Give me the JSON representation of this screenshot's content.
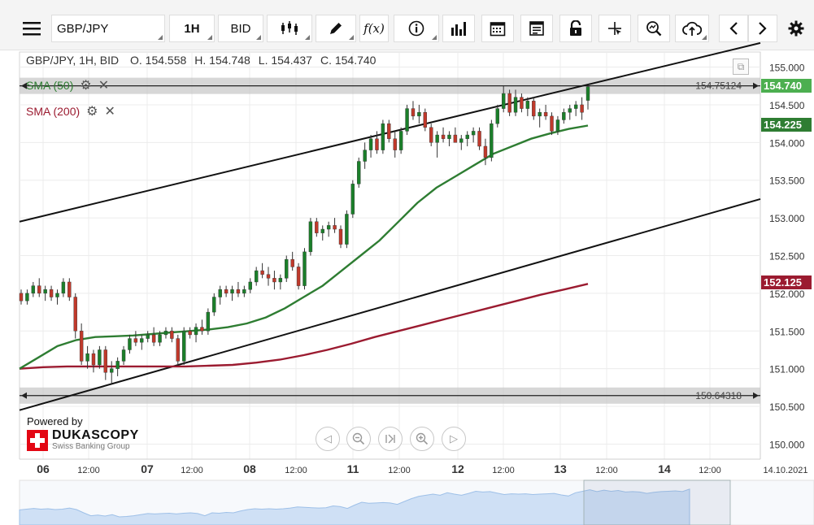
{
  "toolbar": {
    "menu_icon": "hamburger-icon",
    "symbol": "GBP/JPY",
    "timeframe": "1H",
    "side": "BID",
    "chart_type_icon": "candlestick-icon",
    "draw_icon": "pencil-icon",
    "indicator_label": "f(x)",
    "info_icon": "info-icon",
    "volume_icon": "bar-chart-icon",
    "calendar_icon": "calendar-icon",
    "template_icon": "template-icon",
    "lock_icon": "lock-icon",
    "crosshair_icon": "crosshair-icon",
    "zoom_icon": "zoom-icon",
    "cloud_icon": "cloud-upload-icon",
    "prev_icon": "chevron-left-icon",
    "next_icon": "chevron-right-icon",
    "settings_icon": "gear-icon"
  },
  "header": {
    "instrument": "GBP/JPY, 1H, BID",
    "open": "O. 154.558",
    "high": "H. 154.748",
    "low": "L. 154.437",
    "close": "C. 154.740"
  },
  "indicators": [
    {
      "label": "SMA (50)",
      "color": "#2e7d32"
    },
    {
      "label": "SMA (200)",
      "color": "#9b1b30"
    }
  ],
  "levels": {
    "upper_label": "154.75124",
    "lower_label": "150.64318"
  },
  "price_tags": {
    "last": "154.740",
    "sma50": "154.225",
    "sma200": "152.125"
  },
  "branding": {
    "powered": "Powered by",
    "name": "DUKASCOPY",
    "sub": "Swiss Banking Group"
  },
  "nav": [
    "chevron-left-icon",
    "zoom-out-icon",
    "reset-icon",
    "zoom-in-icon",
    "chevron-right-icon"
  ],
  "chart_data": {
    "type": "candlestick",
    "y_ticks": [
      "155.000",
      "154.500",
      "154.000",
      "153.500",
      "153.000",
      "152.500",
      "152.000",
      "151.500",
      "151.000",
      "150.500",
      "150.000"
    ],
    "ylim": [
      149.8,
      155.2
    ],
    "x_labels": [
      "06",
      "12:00",
      "07",
      "12:00",
      "08",
      "12:00",
      "11",
      "12:00",
      "12",
      "12:00",
      "13",
      "12:00",
      "14",
      "12:00",
      "14.10.2021"
    ],
    "x_label_days": [
      "06",
      "07",
      "08",
      "11",
      "12",
      "13",
      "14"
    ],
    "candles": [
      [
        152.0,
        152.05,
        151.85,
        151.9
      ],
      [
        151.9,
        152.05,
        151.85,
        152.0
      ],
      [
        152.0,
        152.15,
        151.95,
        152.1
      ],
      [
        152.1,
        152.2,
        151.95,
        152.0
      ],
      [
        152.0,
        152.1,
        151.9,
        152.05
      ],
      [
        152.05,
        152.1,
        151.9,
        151.95
      ],
      [
        151.95,
        152.05,
        151.85,
        152.0
      ],
      [
        152.0,
        152.2,
        151.95,
        152.15
      ],
      [
        152.15,
        152.2,
        151.9,
        151.95
      ],
      [
        151.95,
        152.0,
        151.4,
        151.5
      ],
      [
        151.5,
        151.6,
        151.05,
        151.1
      ],
      [
        151.1,
        151.3,
        151.0,
        151.2
      ],
      [
        151.2,
        151.25,
        150.95,
        151.05
      ],
      [
        151.05,
        151.3,
        151.0,
        151.25
      ],
      [
        151.25,
        151.3,
        150.85,
        150.95
      ],
      [
        150.95,
        151.1,
        150.8,
        151.0
      ],
      [
        151.0,
        151.15,
        150.9,
        151.1
      ],
      [
        151.1,
        151.3,
        151.05,
        151.25
      ],
      [
        151.25,
        151.45,
        151.2,
        151.4
      ],
      [
        151.4,
        151.5,
        151.3,
        151.35
      ],
      [
        151.35,
        151.45,
        151.25,
        151.4
      ],
      [
        151.4,
        151.5,
        151.35,
        151.45
      ],
      [
        151.45,
        151.55,
        151.3,
        151.35
      ],
      [
        151.35,
        151.5,
        151.3,
        151.45
      ],
      [
        151.45,
        151.55,
        151.4,
        151.5
      ],
      [
        151.5,
        151.55,
        151.35,
        151.4
      ],
      [
        151.4,
        151.45,
        151.05,
        151.1
      ],
      [
        151.1,
        151.55,
        151.05,
        151.5
      ],
      [
        151.5,
        151.55,
        151.4,
        151.45
      ],
      [
        151.45,
        151.6,
        151.35,
        151.55
      ],
      [
        151.55,
        151.65,
        151.45,
        151.5
      ],
      [
        151.5,
        151.8,
        151.45,
        151.75
      ],
      [
        151.75,
        152.0,
        151.7,
        151.95
      ],
      [
        151.95,
        152.1,
        151.85,
        152.05
      ],
      [
        152.05,
        152.1,
        151.95,
        152.0
      ],
      [
        152.0,
        152.1,
        151.9,
        152.05
      ],
      [
        152.05,
        152.15,
        151.95,
        152.0
      ],
      [
        152.0,
        152.1,
        151.95,
        152.05
      ],
      [
        152.05,
        152.2,
        152.0,
        152.15
      ],
      [
        152.15,
        152.35,
        152.1,
        152.3
      ],
      [
        152.3,
        152.4,
        152.2,
        152.25
      ],
      [
        152.25,
        152.35,
        152.1,
        152.2
      ],
      [
        152.2,
        152.3,
        152.05,
        152.15
      ],
      [
        152.15,
        152.25,
        152.05,
        152.2
      ],
      [
        152.2,
        152.5,
        152.15,
        152.45
      ],
      [
        152.45,
        152.55,
        152.3,
        152.35
      ],
      [
        152.35,
        152.4,
        152.05,
        152.1
      ],
      [
        152.1,
        152.6,
        152.05,
        152.55
      ],
      [
        152.55,
        153.0,
        152.5,
        152.95
      ],
      [
        152.95,
        153.0,
        152.75,
        152.8
      ],
      [
        152.8,
        152.9,
        152.7,
        152.85
      ],
      [
        152.85,
        152.95,
        152.75,
        152.9
      ],
      [
        152.9,
        153.0,
        152.8,
        152.85
      ],
      [
        152.85,
        152.9,
        152.6,
        152.65
      ],
      [
        152.65,
        153.1,
        152.6,
        153.05
      ],
      [
        153.05,
        153.5,
        153.0,
        153.45
      ],
      [
        153.45,
        153.8,
        153.4,
        153.75
      ],
      [
        153.75,
        154.0,
        153.65,
        153.9
      ],
      [
        153.9,
        154.1,
        153.8,
        154.05
      ],
      [
        154.05,
        154.15,
        153.85,
        153.9
      ],
      [
        153.9,
        154.3,
        153.85,
        154.25
      ],
      [
        154.25,
        154.3,
        154.0,
        154.05
      ],
      [
        154.05,
        154.15,
        153.8,
        153.9
      ],
      [
        153.9,
        154.2,
        153.85,
        154.15
      ],
      [
        154.15,
        154.5,
        154.1,
        154.45
      ],
      [
        154.45,
        154.55,
        154.3,
        154.35
      ],
      [
        154.35,
        154.5,
        154.25,
        154.4
      ],
      [
        154.4,
        154.45,
        154.15,
        154.2
      ],
      [
        154.2,
        154.25,
        153.95,
        154.0
      ],
      [
        154.0,
        154.15,
        153.8,
        154.1
      ],
      [
        154.1,
        154.2,
        154.0,
        154.05
      ],
      [
        154.05,
        154.15,
        153.95,
        154.1
      ],
      [
        154.1,
        154.2,
        154.0,
        154.0
      ],
      [
        154.0,
        154.1,
        153.9,
        154.05
      ],
      [
        154.05,
        154.15,
        153.95,
        154.1
      ],
      [
        154.1,
        154.2,
        154.0,
        154.15
      ],
      [
        154.15,
        154.2,
        153.9,
        153.95
      ],
      [
        153.95,
        154.05,
        153.7,
        153.8
      ],
      [
        153.8,
        154.3,
        153.75,
        154.25
      ],
      [
        154.25,
        154.5,
        154.2,
        154.45
      ],
      [
        154.45,
        154.75,
        154.4,
        154.65
      ],
      [
        154.65,
        154.7,
        154.35,
        154.4
      ],
      [
        154.4,
        154.7,
        154.35,
        154.6
      ],
      [
        154.6,
        154.65,
        154.4,
        154.45
      ],
      [
        154.45,
        154.6,
        154.35,
        154.55
      ],
      [
        154.55,
        154.6,
        154.3,
        154.35
      ],
      [
        154.35,
        154.45,
        154.2,
        154.4
      ],
      [
        154.4,
        154.5,
        154.3,
        154.35
      ],
      [
        154.35,
        154.4,
        154.1,
        154.15
      ],
      [
        154.15,
        154.35,
        154.1,
        154.3
      ],
      [
        154.3,
        154.45,
        154.25,
        154.4
      ],
      [
        154.4,
        154.5,
        154.3,
        154.45
      ],
      [
        154.45,
        154.55,
        154.35,
        154.5
      ],
      [
        154.5,
        154.6,
        154.3,
        154.4
      ],
      [
        154.558,
        154.748,
        154.437,
        154.74
      ]
    ],
    "sma50": [
      151.0,
      151.15,
      151.3,
      151.38,
      151.42,
      151.43,
      151.44,
      151.46,
      151.48,
      151.5,
      151.52,
      151.55,
      151.6,
      151.68,
      151.8,
      151.95,
      152.1,
      152.3,
      152.5,
      152.7,
      152.95,
      153.2,
      153.4,
      153.55,
      153.7,
      153.85,
      153.95,
      154.05,
      154.12,
      154.18,
      154.225
    ],
    "sma200": [
      151.0,
      151.02,
      151.03,
      151.03,
      151.03,
      151.03,
      151.03,
      151.03,
      151.04,
      151.05,
      151.08,
      151.12,
      151.18,
      151.25,
      151.33,
      151.42,
      151.5,
      151.58,
      151.66,
      151.74,
      151.82,
      151.9,
      151.98,
      152.05,
      152.125
    ],
    "channel_upper": [
      [
        0,
        152.95
      ],
      [
        1,
        155.32
      ]
    ],
    "channel_lower": [
      [
        0,
        150.45
      ],
      [
        1,
        153.25
      ]
    ],
    "horizontal_levels": [
      154.75124,
      150.64318
    ]
  }
}
